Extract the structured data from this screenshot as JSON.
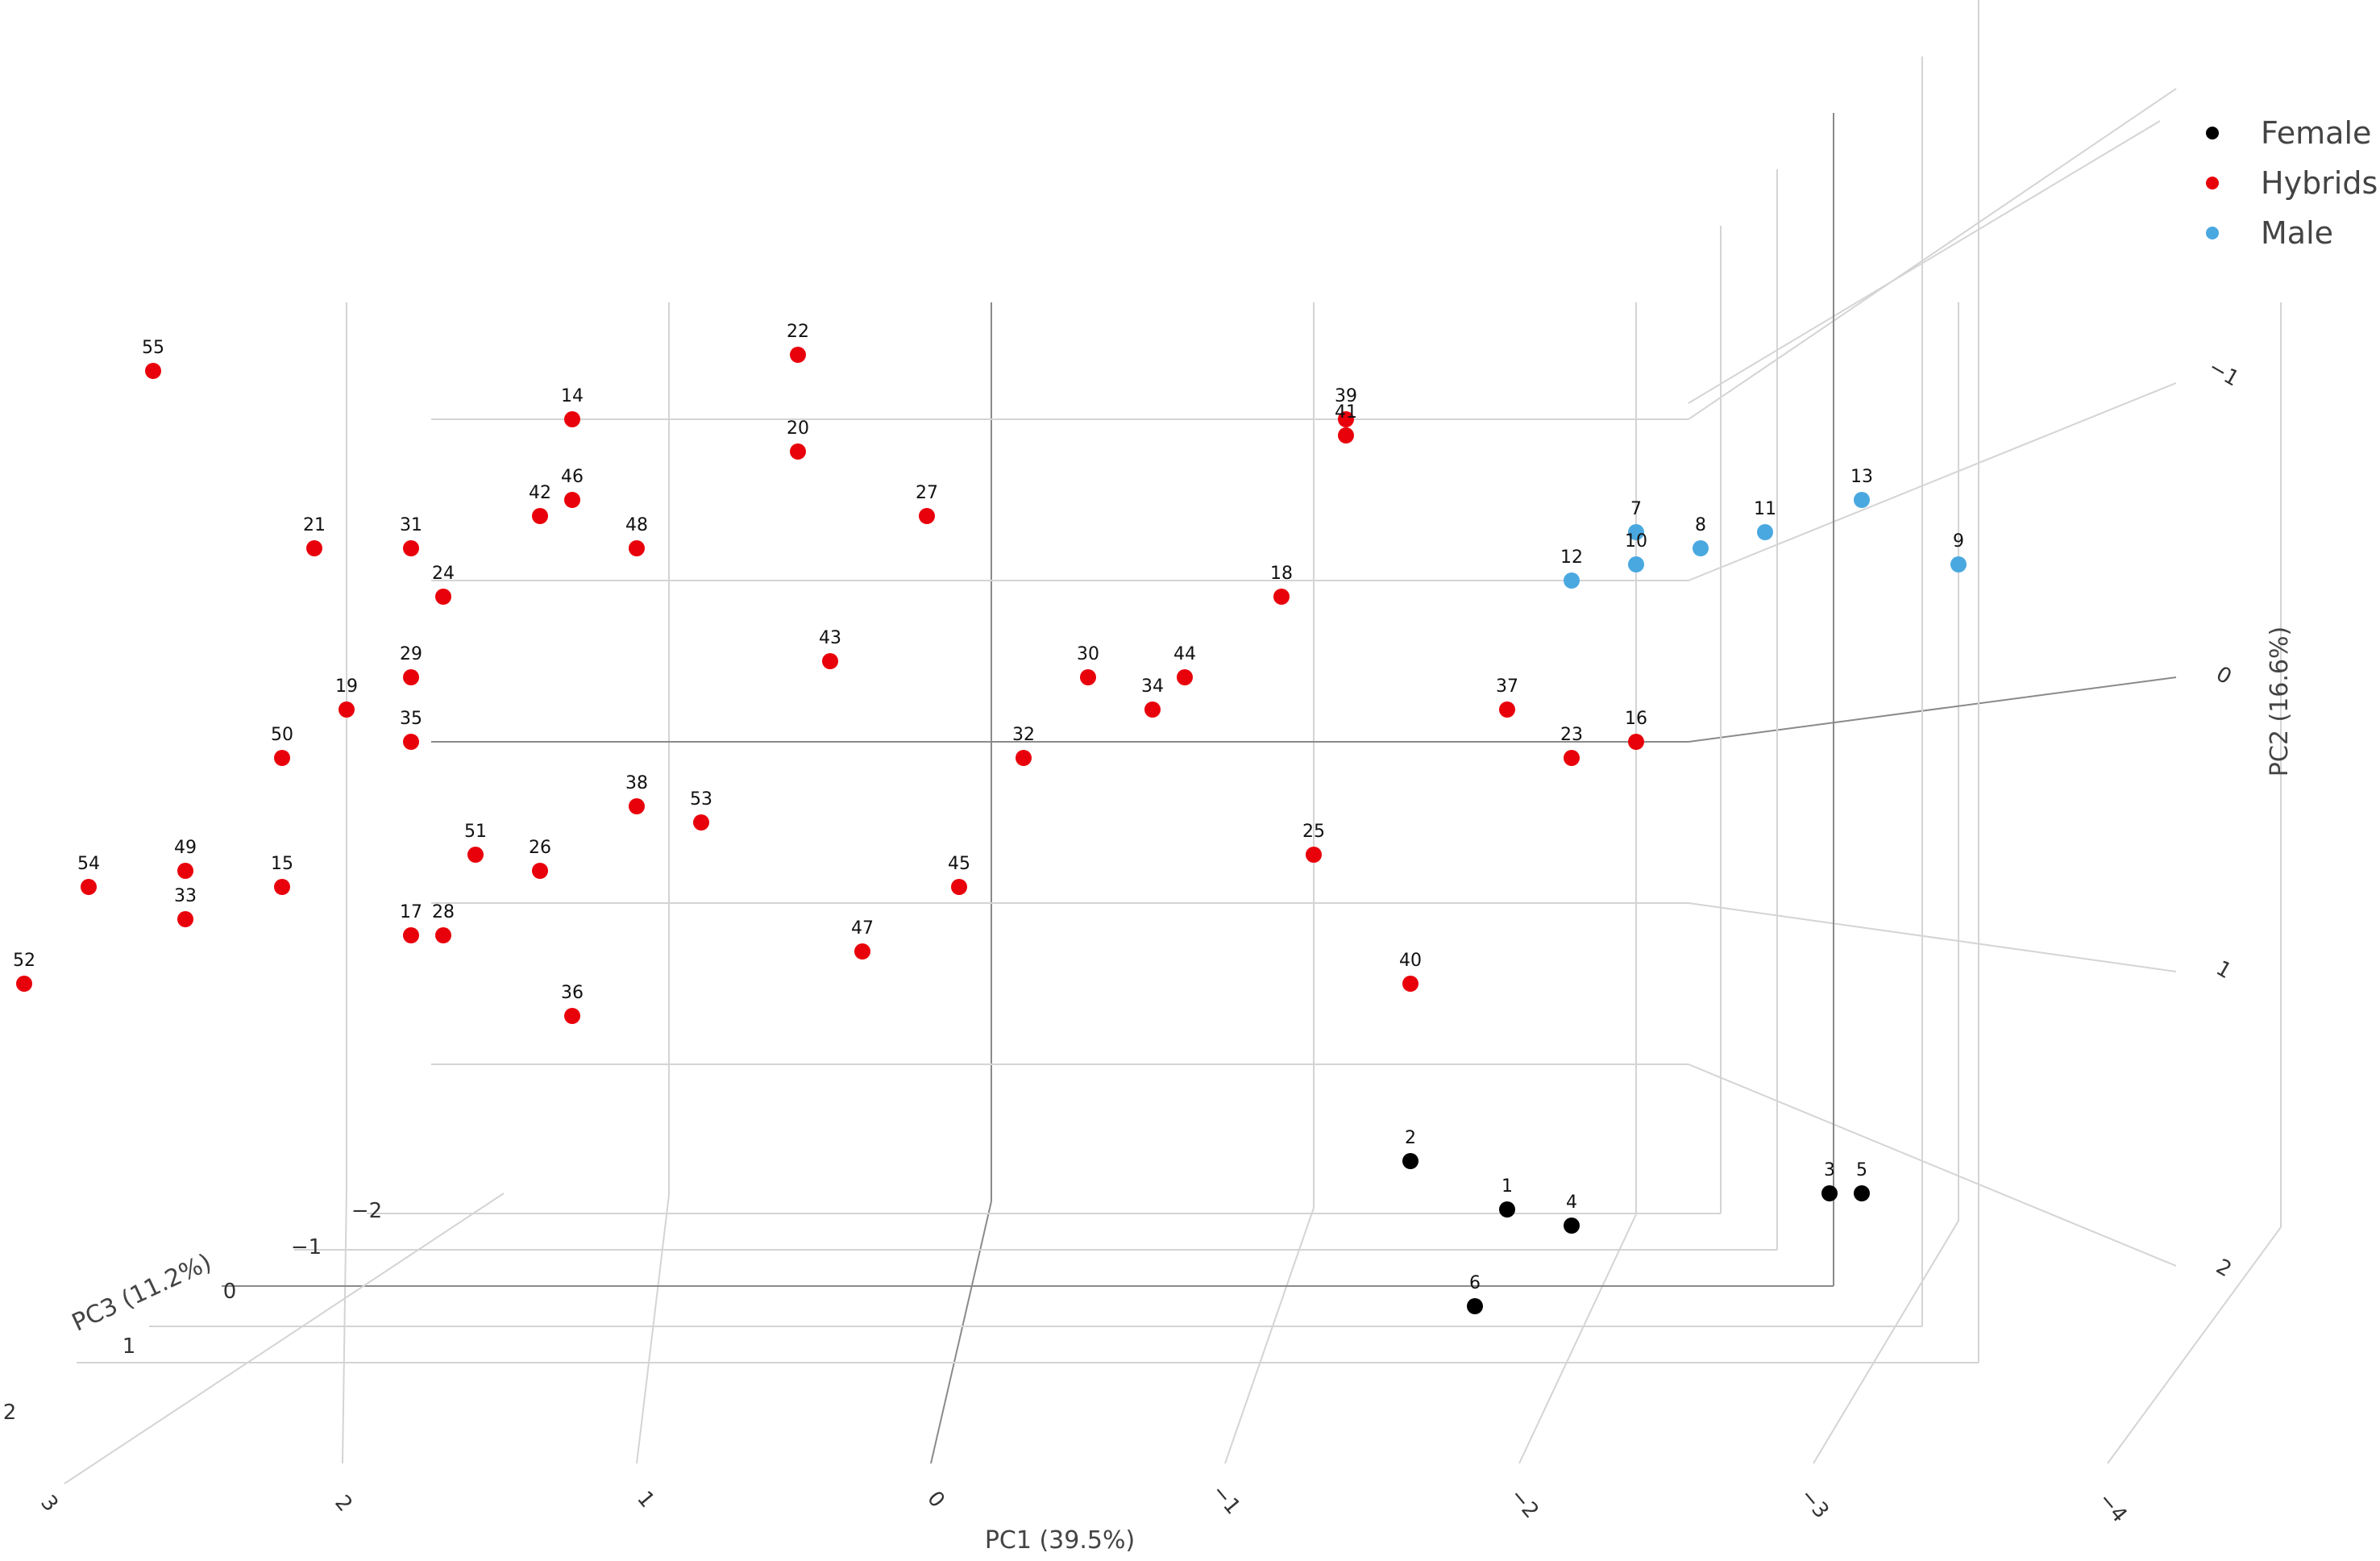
{
  "chart_data": {
    "type": "scatter",
    "title": "",
    "xlabel": "PC1 (39.5%)",
    "ylabel": "PC2 (16.6%)",
    "zlabel": "PC3 (11.2%)",
    "x_ticks": [
      "3",
      "2",
      "1",
      "0",
      "−1",
      "−2",
      "−3",
      "−4"
    ],
    "y_ticks": [
      "−1",
      "0",
      "1",
      "2"
    ],
    "z_ticks": [
      "−2",
      "−1",
      "0",
      "1",
      "2"
    ],
    "grid": true,
    "legend_position": "top-right",
    "series": [
      {
        "name": "Female",
        "color": "#000000",
        "points": [
          {
            "id": "2",
            "pc1": -1.3,
            "pc2": 2.6
          },
          {
            "id": "1",
            "pc1": -1.6,
            "pc2": 2.9
          },
          {
            "id": "4",
            "pc1": -1.8,
            "pc2": 3.0
          },
          {
            "id": "3",
            "pc1": -2.6,
            "pc2": 2.8
          },
          {
            "id": "5",
            "pc1": -2.7,
            "pc2": 2.8
          },
          {
            "id": "6",
            "pc1": -1.5,
            "pc2": 3.5
          }
        ]
      },
      {
        "name": "Hybrids",
        "color": "#e8000b",
        "points": [
          {
            "id": "55",
            "pc1": 2.6,
            "pc2": -2.3
          },
          {
            "id": "22",
            "pc1": 0.6,
            "pc2": -2.4
          },
          {
            "id": "14",
            "pc1": 1.3,
            "pc2": -2.0
          },
          {
            "id": "20",
            "pc1": 0.6,
            "pc2": -1.8
          },
          {
            "id": "39",
            "pc1": -1.1,
            "pc2": -2.0
          },
          {
            "id": "41",
            "pc1": -1.1,
            "pc2": -1.9
          },
          {
            "id": "27",
            "pc1": 0.2,
            "pc2": -1.4
          },
          {
            "id": "42",
            "pc1": 1.4,
            "pc2": -1.4
          },
          {
            "id": "46",
            "pc1": 1.3,
            "pc2": -1.5
          },
          {
            "id": "21",
            "pc1": 2.1,
            "pc2": -1.2
          },
          {
            "id": "31",
            "pc1": 1.8,
            "pc2": -1.2
          },
          {
            "id": "48",
            "pc1": 1.1,
            "pc2": -1.2
          },
          {
            "id": "24",
            "pc1": 1.7,
            "pc2": -0.9
          },
          {
            "id": "18",
            "pc1": -0.9,
            "pc2": -0.9
          },
          {
            "id": "43",
            "pc1": 0.5,
            "pc2": -0.5
          },
          {
            "id": "29",
            "pc1": 1.8,
            "pc2": -0.4
          },
          {
            "id": "30",
            "pc1": -0.3,
            "pc2": -0.4
          },
          {
            "id": "44",
            "pc1": -0.6,
            "pc2": -0.4
          },
          {
            "id": "34",
            "pc1": -0.5,
            "pc2": -0.2
          },
          {
            "id": "19",
            "pc1": 2.0,
            "pc2": -0.2
          },
          {
            "id": "37",
            "pc1": -1.6,
            "pc2": -0.2
          },
          {
            "id": "35",
            "pc1": 1.8,
            "pc2": 0.0
          },
          {
            "id": "50",
            "pc1": 2.2,
            "pc2": 0.1
          },
          {
            "id": "23",
            "pc1": -1.8,
            "pc2": 0.1
          },
          {
            "id": "16",
            "pc1": -2.0,
            "pc2": 0.0
          },
          {
            "id": "32",
            "pc1": -0.1,
            "pc2": 0.1
          },
          {
            "id": "38",
            "pc1": 1.1,
            "pc2": 0.4
          },
          {
            "id": "53",
            "pc1": 0.9,
            "pc2": 0.5
          },
          {
            "id": "25",
            "pc1": -1.0,
            "pc2": 0.7
          },
          {
            "id": "51",
            "pc1": 1.6,
            "pc2": 0.7
          },
          {
            "id": "26",
            "pc1": 1.4,
            "pc2": 0.8
          },
          {
            "id": "45",
            "pc1": 0.1,
            "pc2": 0.9
          },
          {
            "id": "49",
            "pc1": 2.5,
            "pc2": 0.8
          },
          {
            "id": "15",
            "pc1": 2.2,
            "pc2": 0.9
          },
          {
            "id": "54",
            "pc1": 2.8,
            "pc2": 0.9
          },
          {
            "id": "33",
            "pc1": 2.5,
            "pc2": 1.1
          },
          {
            "id": "17",
            "pc1": 1.8,
            "pc2": 1.2
          },
          {
            "id": "28",
            "pc1": 1.7,
            "pc2": 1.2
          },
          {
            "id": "47",
            "pc1": 0.4,
            "pc2": 1.3
          },
          {
            "id": "40",
            "pc1": -1.3,
            "pc2": 1.5
          },
          {
            "id": "52",
            "pc1": 3.0,
            "pc2": 1.5
          },
          {
            "id": "36",
            "pc1": 1.3,
            "pc2": 1.7
          }
        ]
      },
      {
        "name": "Male",
        "color": "#4aa8e0",
        "points": [
          {
            "id": "13",
            "pc1": -2.7,
            "pc2": -1.5
          },
          {
            "id": "7",
            "pc1": -2.0,
            "pc2": -1.3
          },
          {
            "id": "11",
            "pc1": -2.4,
            "pc2": -1.3
          },
          {
            "id": "8",
            "pc1": -2.2,
            "pc2": -1.2
          },
          {
            "id": "10",
            "pc1": -2.0,
            "pc2": -1.1
          },
          {
            "id": "9",
            "pc1": -3.0,
            "pc2": -1.1
          },
          {
            "id": "12",
            "pc1": -1.8,
            "pc2": -1.0
          }
        ]
      }
    ]
  }
}
